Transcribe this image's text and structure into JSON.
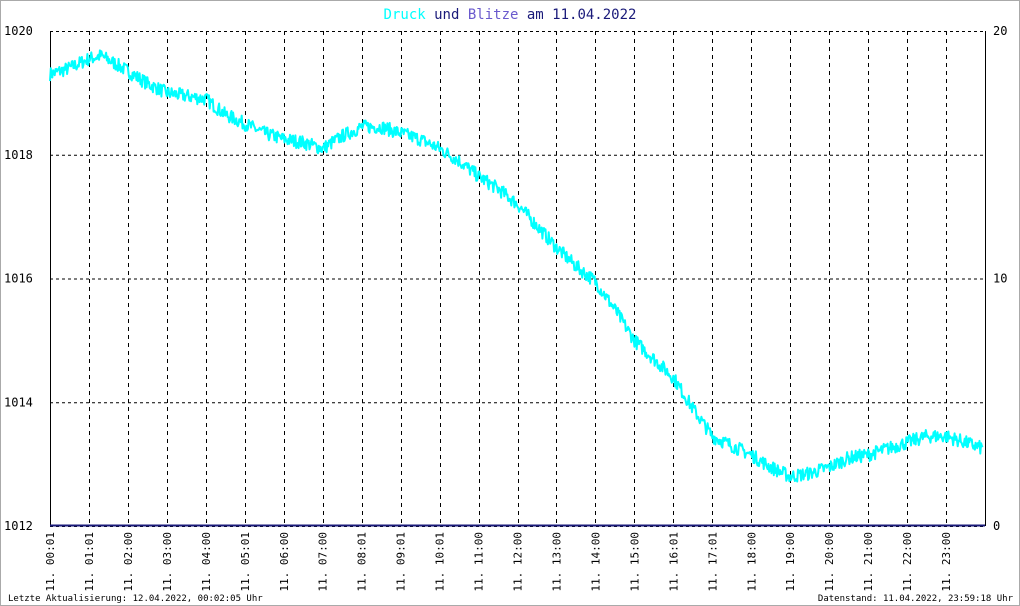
{
  "chart_data": {
    "type": "line",
    "title": {
      "series1": "Druck",
      "connector": " und ",
      "series2": "Blitze",
      "suffix": " am 11.04.2022"
    },
    "colors": {
      "druck": "#00ffff",
      "blitze": "#1a1a7a",
      "title_und": "#1a1a7a",
      "title_blitze": "#6a5acd",
      "grid": "#000000",
      "frame": "#aaaaaa"
    },
    "y_left": {
      "min": 1012,
      "max": 1020,
      "ticks": [
        "1020",
        "1018",
        "1016",
        "1014",
        "1012"
      ]
    },
    "y_right": {
      "min": 0,
      "max": 20,
      "ticks": [
        "20",
        "10",
        "0"
      ]
    },
    "x_range_hours": [
      0,
      24
    ],
    "x_ticks": [
      {
        "t": 0.0,
        "label": "11. 00:01"
      },
      {
        "t": 1.0,
        "label": "11. 01:01"
      },
      {
        "t": 2.0,
        "label": "11. 02:00"
      },
      {
        "t": 3.0,
        "label": "11. 03:00"
      },
      {
        "t": 4.0,
        "label": "11. 04:00"
      },
      {
        "t": 5.0,
        "label": "11. 05:01"
      },
      {
        "t": 6.0,
        "label": "11. 06:00"
      },
      {
        "t": 7.0,
        "label": "11. 07:00"
      },
      {
        "t": 8.0,
        "label": "11. 08:01"
      },
      {
        "t": 9.0,
        "label": "11. 09:01"
      },
      {
        "t": 10.0,
        "label": "11. 10:01"
      },
      {
        "t": 11.0,
        "label": "11. 11:00"
      },
      {
        "t": 12.0,
        "label": "11. 12:00"
      },
      {
        "t": 13.0,
        "label": "11. 13:00"
      },
      {
        "t": 14.0,
        "label": "11. 14:00"
      },
      {
        "t": 15.0,
        "label": "11. 15:00"
      },
      {
        "t": 16.0,
        "label": "11. 16:01"
      },
      {
        "t": 17.0,
        "label": "11. 17:01"
      },
      {
        "t": 18.0,
        "label": "11. 18:00"
      },
      {
        "t": 19.0,
        "label": "11. 19:00"
      },
      {
        "t": 20.0,
        "label": "11. 20:00"
      },
      {
        "t": 21.0,
        "label": "11. 21:00"
      },
      {
        "t": 22.0,
        "label": "11. 22:00"
      },
      {
        "t": 23.0,
        "label": "11. 23:00"
      }
    ],
    "series": [
      {
        "key": "druck",
        "values": [
          [
            0.0,
            1019.3
          ],
          [
            0.5,
            1019.4
          ],
          [
            1.0,
            1019.55
          ],
          [
            1.3,
            1019.6
          ],
          [
            1.6,
            1019.5
          ],
          [
            2.0,
            1019.35
          ],
          [
            2.5,
            1019.15
          ],
          [
            3.0,
            1019.0
          ],
          [
            3.5,
            1018.95
          ],
          [
            4.0,
            1018.9
          ],
          [
            4.5,
            1018.65
          ],
          [
            5.0,
            1018.5
          ],
          [
            5.5,
            1018.35
          ],
          [
            6.0,
            1018.25
          ],
          [
            6.5,
            1018.2
          ],
          [
            7.0,
            1018.1
          ],
          [
            7.5,
            1018.3
          ],
          [
            8.0,
            1018.45
          ],
          [
            8.5,
            1018.45
          ],
          [
            9.0,
            1018.35
          ],
          [
            9.5,
            1018.25
          ],
          [
            10.0,
            1018.1
          ],
          [
            10.5,
            1017.9
          ],
          [
            11.0,
            1017.65
          ],
          [
            11.5,
            1017.45
          ],
          [
            12.0,
            1017.2
          ],
          [
            12.5,
            1016.85
          ],
          [
            13.0,
            1016.5
          ],
          [
            13.5,
            1016.2
          ],
          [
            14.0,
            1015.95
          ],
          [
            14.5,
            1015.5
          ],
          [
            15.0,
            1015.0
          ],
          [
            15.5,
            1014.7
          ],
          [
            16.0,
            1014.4
          ],
          [
            16.5,
            1013.9
          ],
          [
            17.0,
            1013.45
          ],
          [
            17.5,
            1013.3
          ],
          [
            18.0,
            1013.15
          ],
          [
            18.5,
            1012.95
          ],
          [
            19.0,
            1012.8
          ],
          [
            19.5,
            1012.85
          ],
          [
            20.0,
            1012.95
          ],
          [
            20.5,
            1013.1
          ],
          [
            21.0,
            1013.15
          ],
          [
            21.5,
            1013.25
          ],
          [
            22.0,
            1013.35
          ],
          [
            22.5,
            1013.45
          ],
          [
            23.0,
            1013.45
          ],
          [
            23.5,
            1013.35
          ],
          [
            23.95,
            1013.25
          ]
        ]
      },
      {
        "key": "blitze",
        "values": [
          [
            0.0,
            0
          ],
          [
            24.0,
            0
          ]
        ]
      }
    ],
    "grid": true
  },
  "footer": {
    "left": "Letzte Aktualisierung: 12.04.2022, 00:02:05 Uhr",
    "right": "Datenstand: 11.04.2022, 23:59:18 Uhr"
  }
}
